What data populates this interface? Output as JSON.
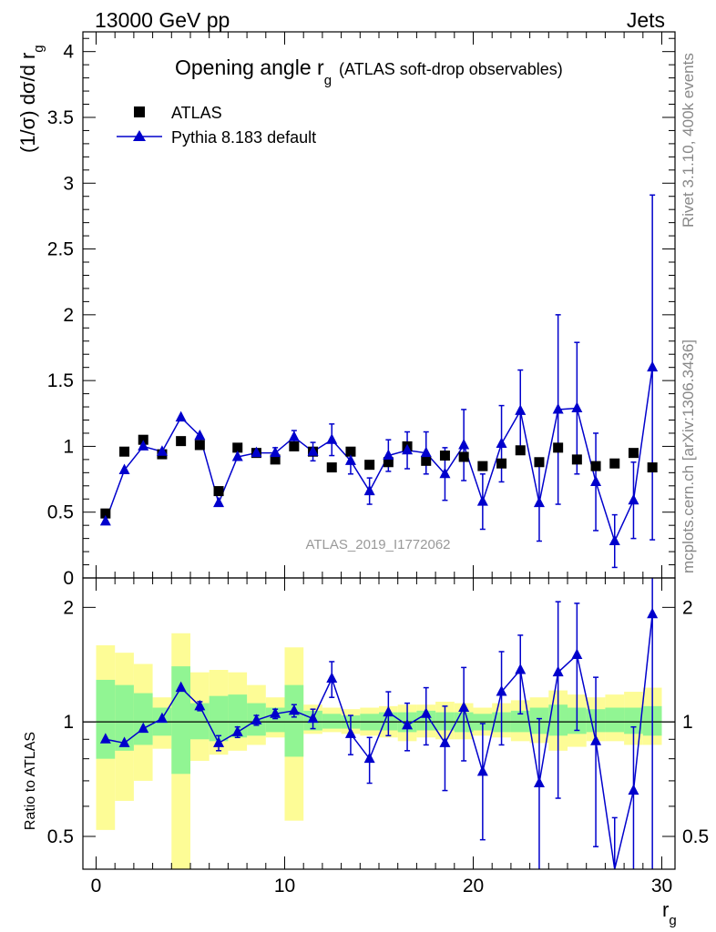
{
  "header": {
    "process": "13000 GeV pp",
    "category": "Jets",
    "rivet_info": "Rivet 3.1.10,  400k events",
    "source": "mcplots.cern.ch [arXiv:1306.3436]",
    "analysis_id": "ATLAS_2019_I1772062"
  },
  "chart_data": [
    {
      "type": "scatter",
      "panel": "main",
      "title": "Opening angle r",
      "title_sub": "g",
      "title_suffix": "(ATLAS soft-drop observables)",
      "ylabel": "(1/σ) dσ/d r",
      "ylabel_sub": "g",
      "ylim": [
        0,
        4.15
      ],
      "xlim": [
        -0.7,
        30.7
      ],
      "yticks": [
        "0",
        "0.5",
        "1",
        "1.5",
        "2",
        "2.5",
        "3",
        "3.5",
        "4"
      ],
      "ytick_values": [
        0,
        0.5,
        1,
        1.5,
        2,
        2.5,
        3,
        3.5,
        4
      ],
      "legend": [
        {
          "name": "ATLAS",
          "marker": "square",
          "color": "#000000"
        },
        {
          "name": "Pythia 8.183 default",
          "marker": "triangle",
          "color": "#0000cc"
        }
      ],
      "x": [
        0.5,
        1.5,
        2.5,
        3.5,
        4.5,
        5.5,
        6.5,
        7.5,
        8.5,
        9.5,
        10.5,
        11.5,
        12.5,
        13.5,
        14.5,
        15.5,
        16.5,
        17.5,
        18.5,
        19.5,
        20.5,
        21.5,
        22.5,
        23.5,
        24.5,
        25.5,
        26.5,
        27.5,
        28.5,
        29.5
      ],
      "series": [
        {
          "name": "ATLAS",
          "values": [
            0.49,
            0.96,
            1.05,
            0.94,
            1.04,
            1.01,
            0.66,
            0.99,
            0.95,
            0.9,
            1.0,
            0.96,
            0.84,
            0.96,
            0.86,
            0.88,
            1.0,
            0.89,
            0.93,
            0.92,
            0.85,
            0.87,
            0.97,
            0.88,
            0.99,
            0.9,
            0.85,
            0.87,
            0.95,
            0.84
          ]
        },
        {
          "name": "Pythia 8.183 default",
          "values": [
            0.43,
            0.82,
            1.0,
            0.96,
            1.22,
            1.08,
            0.57,
            0.92,
            0.95,
            0.95,
            1.07,
            0.96,
            1.05,
            0.89,
            0.66,
            0.93,
            0.97,
            0.95,
            0.79,
            1.01,
            0.58,
            1.02,
            1.27,
            0.57,
            1.28,
            1.29,
            0.73,
            0.28,
            0.59,
            1.6
          ],
          "err": [
            0.02,
            0.02,
            0.02,
            0.02,
            0.02,
            0.03,
            0.03,
            0.03,
            0.03,
            0.04,
            0.05,
            0.07,
            0.12,
            0.1,
            0.1,
            0.12,
            0.14,
            0.16,
            0.2,
            0.27,
            0.21,
            0.29,
            0.31,
            0.29,
            0.72,
            0.5,
            0.37,
            0.2,
            0.29,
            1.31
          ]
        }
      ]
    },
    {
      "type": "scatter",
      "panel": "ratio",
      "ylabel": "Ratio to ATLAS",
      "xlabel": "r",
      "xlabel_sub": "g",
      "ylim": [
        0.41,
        2.39
      ],
      "xlim": [
        -0.7,
        30.7
      ],
      "yticks": [
        "0.5",
        "1",
        "2"
      ],
      "ytick_values": [
        0.5,
        1,
        2
      ],
      "xticks": [
        "0",
        "10",
        "20",
        "30"
      ],
      "xtick_values": [
        0,
        10,
        20,
        30
      ],
      "reference_line": 1,
      "band_colors": {
        "stat": "#91f593",
        "total": "#fdfc96",
        "line": "#0000cc"
      },
      "x": [
        0.5,
        1.5,
        2.5,
        3.5,
        4.5,
        5.5,
        6.5,
        7.5,
        8.5,
        9.5,
        10.5,
        11.5,
        12.5,
        13.5,
        14.5,
        15.5,
        16.5,
        17.5,
        18.5,
        19.5,
        20.5,
        21.5,
        22.5,
        23.5,
        24.5,
        25.5,
        26.5,
        27.5,
        28.5,
        29.5
      ],
      "band_stat": [
        [
          0.8,
          1.29
        ],
        [
          0.84,
          1.25
        ],
        [
          0.87,
          1.19
        ],
        [
          0.92,
          1.09
        ],
        [
          0.73,
          1.4
        ],
        [
          0.9,
          1.12
        ],
        [
          0.89,
          1.17
        ],
        [
          0.91,
          1.18
        ],
        [
          0.92,
          1.12
        ],
        [
          0.94,
          1.09
        ],
        [
          0.81,
          1.25
        ],
        [
          0.95,
          1.07
        ],
        [
          0.96,
          1.05
        ],
        [
          0.96,
          1.04
        ],
        [
          0.95,
          1.05
        ],
        [
          0.95,
          1.06
        ],
        [
          0.94,
          1.06
        ],
        [
          0.95,
          1.07
        ],
        [
          0.95,
          1.06
        ],
        [
          0.94,
          1.06
        ],
        [
          0.95,
          1.05
        ],
        [
          0.94,
          1.06
        ],
        [
          0.94,
          1.07
        ],
        [
          0.93,
          1.09
        ],
        [
          0.92,
          1.11
        ],
        [
          0.93,
          1.09
        ],
        [
          0.94,
          1.08
        ],
        [
          0.94,
          1.09
        ],
        [
          0.93,
          1.09
        ],
        [
          0.92,
          1.1
        ]
      ],
      "band_total": [
        [
          0.52,
          1.59
        ],
        [
          0.62,
          1.52
        ],
        [
          0.7,
          1.42
        ],
        [
          0.85,
          1.16
        ],
        [
          0.3,
          1.71
        ],
        [
          0.79,
          1.35
        ],
        [
          0.82,
          1.37
        ],
        [
          0.84,
          1.35
        ],
        [
          0.87,
          1.25
        ],
        [
          0.91,
          1.16
        ],
        [
          0.55,
          1.57
        ],
        [
          0.93,
          1.11
        ],
        [
          0.94,
          1.09
        ],
        [
          0.93,
          1.08
        ],
        [
          0.92,
          1.09
        ],
        [
          0.91,
          1.1
        ],
        [
          0.89,
          1.11
        ],
        [
          0.91,
          1.11
        ],
        [
          0.9,
          1.13
        ],
        [
          0.9,
          1.12
        ],
        [
          0.92,
          1.09
        ],
        [
          0.91,
          1.12
        ],
        [
          0.89,
          1.14
        ],
        [
          0.88,
          1.16
        ],
        [
          0.84,
          1.21
        ],
        [
          0.86,
          1.18
        ],
        [
          0.89,
          1.16
        ],
        [
          0.89,
          1.18
        ],
        [
          0.87,
          1.2
        ],
        [
          0.87,
          1.23
        ]
      ],
      "series": [
        {
          "name": "Pythia 8.183 default / ATLAS",
          "values": [
            0.9,
            0.88,
            0.96,
            1.02,
            1.23,
            1.1,
            0.88,
            0.94,
            1.01,
            1.05,
            1.07,
            1.02,
            1.3,
            0.93,
            0.8,
            1.06,
            0.98,
            1.05,
            0.88,
            1.09,
            0.74,
            1.2,
            1.37,
            0.69,
            1.35,
            1.5,
            0.89,
            0.33,
            0.66,
            1.92
          ],
          "err": [
            0.02,
            0.02,
            0.02,
            0.02,
            0.02,
            0.03,
            0.04,
            0.03,
            0.03,
            0.03,
            0.04,
            0.06,
            0.14,
            0.11,
            0.11,
            0.14,
            0.14,
            0.18,
            0.22,
            0.3,
            0.25,
            0.33,
            0.32,
            0.33,
            0.72,
            0.55,
            0.42,
            0.23,
            0.31,
            1.55
          ]
        }
      ]
    }
  ]
}
